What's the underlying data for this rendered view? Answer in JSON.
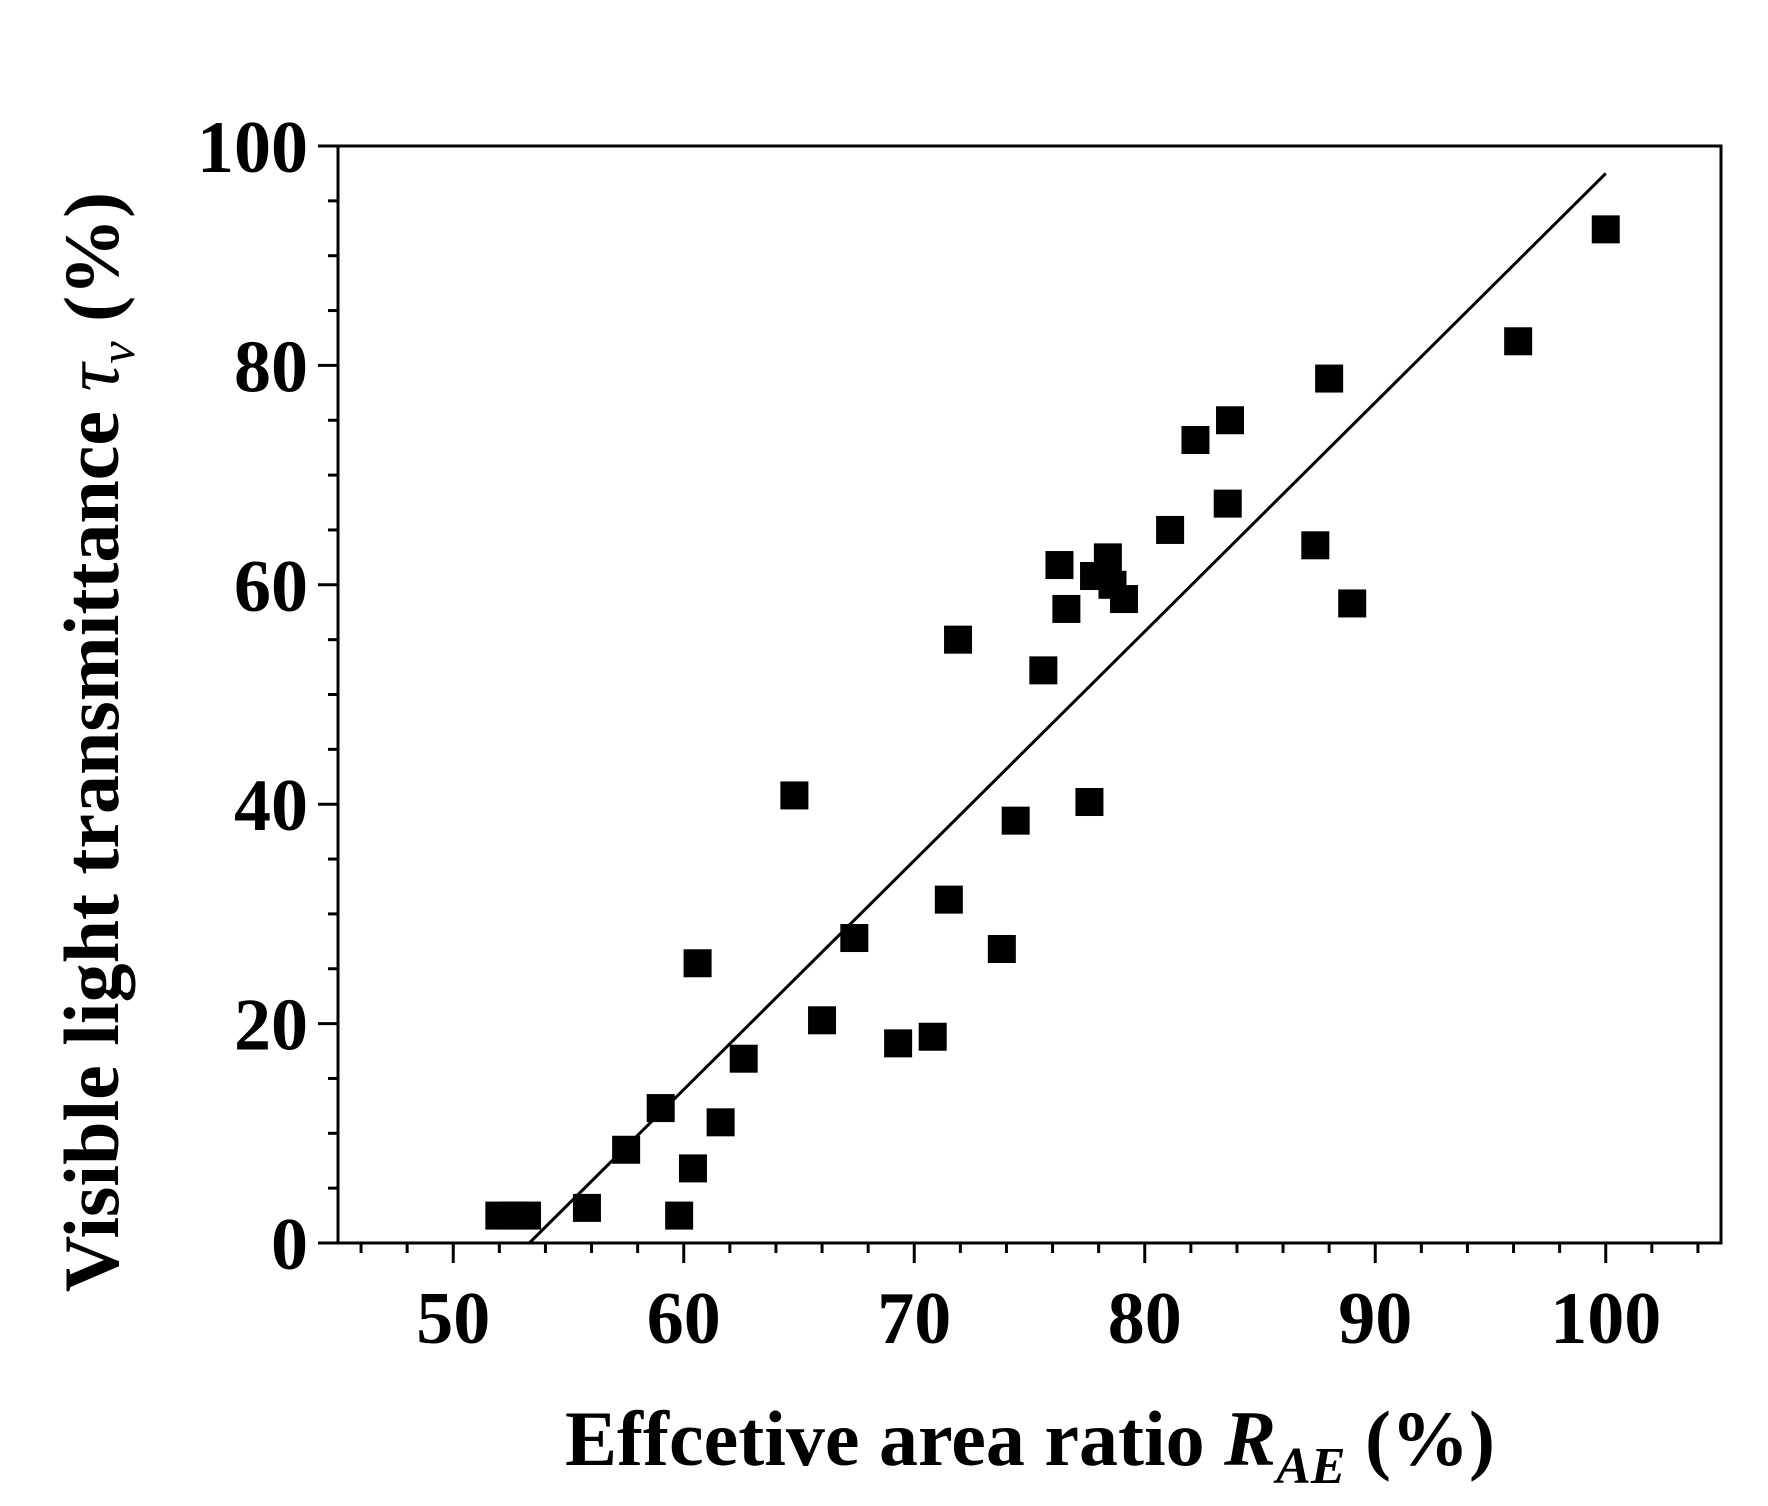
{
  "chart_data": {
    "type": "scatter",
    "xlabel": {
      "main": "Effcetive area ratio ",
      "symbol": "R",
      "subscript": "AE",
      "unit": " (%)"
    },
    "ylabel": {
      "main": "Visible light transmittance ",
      "symbol": "τ",
      "subscript": "v",
      "unit": " (%)"
    },
    "xlim": [
      45,
      105
    ],
    "ylim": [
      0,
      100
    ],
    "x_ticks": [
      "50",
      "60",
      "70",
      "80",
      "90",
      "100"
    ],
    "y_ticks": [
      "0",
      "20",
      "40",
      "60",
      "80",
      "100"
    ],
    "x_tick_values": [
      50,
      60,
      70,
      80,
      90,
      100
    ],
    "y_tick_values": [
      0,
      20,
      40,
      60,
      80,
      100
    ],
    "x_minor_step": 2,
    "y_minor_step": 5,
    "marker": "square",
    "color": "#000000",
    "points": [
      [
        52.0,
        2.5
      ],
      [
        52.7,
        2.5
      ],
      [
        53.2,
        2.5
      ],
      [
        55.8,
        3.2
      ],
      [
        57.5,
        8.5
      ],
      [
        59.0,
        12.3
      ],
      [
        59.8,
        2.5
      ],
      [
        60.4,
        6.8
      ],
      [
        60.6,
        25.5
      ],
      [
        61.6,
        11.0
      ],
      [
        62.6,
        16.8
      ],
      [
        64.8,
        40.8
      ],
      [
        66.0,
        20.3
      ],
      [
        67.4,
        27.8
      ],
      [
        69.3,
        18.2
      ],
      [
        70.8,
        18.8
      ],
      [
        71.5,
        31.3
      ],
      [
        71.9,
        55.0
      ],
      [
        73.8,
        26.8
      ],
      [
        74.4,
        38.5
      ],
      [
        75.6,
        52.2
      ],
      [
        76.3,
        61.8
      ],
      [
        76.6,
        57.8
      ],
      [
        77.6,
        40.2
      ],
      [
        77.8,
        60.8
      ],
      [
        78.4,
        62.5
      ],
      [
        78.6,
        60.0
      ],
      [
        79.1,
        58.7
      ],
      [
        81.1,
        65.0
      ],
      [
        82.2,
        73.2
      ],
      [
        83.6,
        67.4
      ],
      [
        83.7,
        75.0
      ],
      [
        87.4,
        63.6
      ],
      [
        88.0,
        78.8
      ],
      [
        89.0,
        58.3
      ],
      [
        96.2,
        82.2
      ],
      [
        100.0,
        92.4
      ]
    ],
    "fit_line": {
      "x": [
        53.3,
        100.0
      ],
      "y": [
        0.0,
        97.5
      ]
    }
  }
}
